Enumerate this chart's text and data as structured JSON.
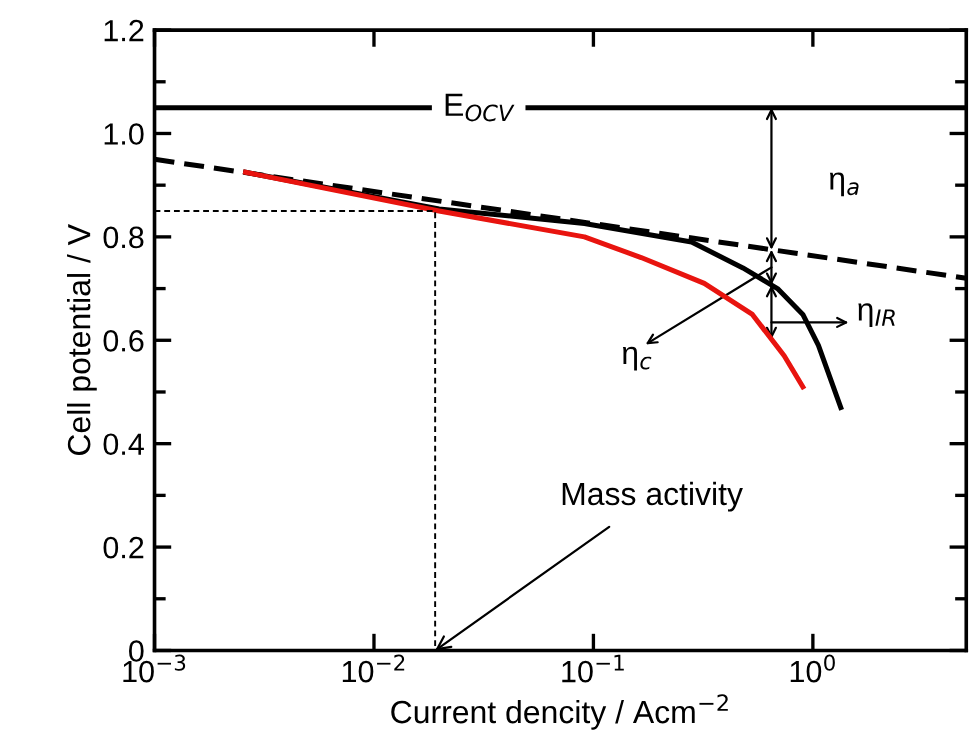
{
  "chart_data": {
    "type": "line",
    "xlabel": "Current dencity / Acm$^{−2}$",
    "ylabel": "Cell potential / V",
    "log": "x",
    "grid": false,
    "xlim": [
      0.001,
      5
    ],
    "ylim": [
      0,
      1.2
    ],
    "xticks": [
      {
        "value": 0.001,
        "label": "10$^{−3}$"
      },
      {
        "value": 0.01,
        "label": "10$^{−2}$"
      },
      {
        "value": 0.1,
        "label": "10$^{−1}$"
      },
      {
        "value": 1,
        "label": "10$^{0}$"
      }
    ],
    "yticks": [
      0,
      0.2,
      0.4,
      0.6,
      0.8,
      {
        "value": 1.0,
        "label": "1.0"
      },
      1.2
    ],
    "ref_lines": [
      {
        "axis": "y",
        "value": 1.05,
        "label": "E$_{OCV}$",
        "color": "#000000",
        "line_style": "solid"
      }
    ],
    "series": [
      {
        "color": "#000000",
        "line_style": "dashed",
        "x": [
          0.001,
          5
        ],
        "values": [
          0.95,
          0.72
        ]
      },
      {
        "color": "#000000",
        "line_style": "solid",
        "x": [
          0.0026,
          0.0198,
          0.091,
          0.28,
          0.48,
          0.69,
          0.9,
          1.06,
          1.34
        ],
        "values": [
          0.925,
          0.854,
          0.826,
          0.79,
          0.74,
          0.7,
          0.65,
          0.59,
          0.47
        ]
      },
      {
        "color": "#e8140f",
        "line_style": "solid",
        "x": [
          0.0026,
          0.0198,
          0.091,
          0.165,
          0.32,
          0.53,
          0.74,
          0.9
        ],
        "values": [
          0.925,
          0.85,
          0.8,
          0.76,
          0.71,
          0.65,
          0.57,
          0.51
        ]
      },
      {
        "color": "#000000",
        "line_style": "dotted",
        "x": [
          0.001,
          0.019,
          0.019
        ],
        "values": [
          0.85,
          0.85,
          0
        ]
      }
    ],
    "annotations": [
      "η$_{a}$",
      "η$_{c}$",
      "η$_{IR}$",
      {
        "text": "Mass activity",
        "x": 0.019,
        "y": 0.0
      }
    ]
  }
}
